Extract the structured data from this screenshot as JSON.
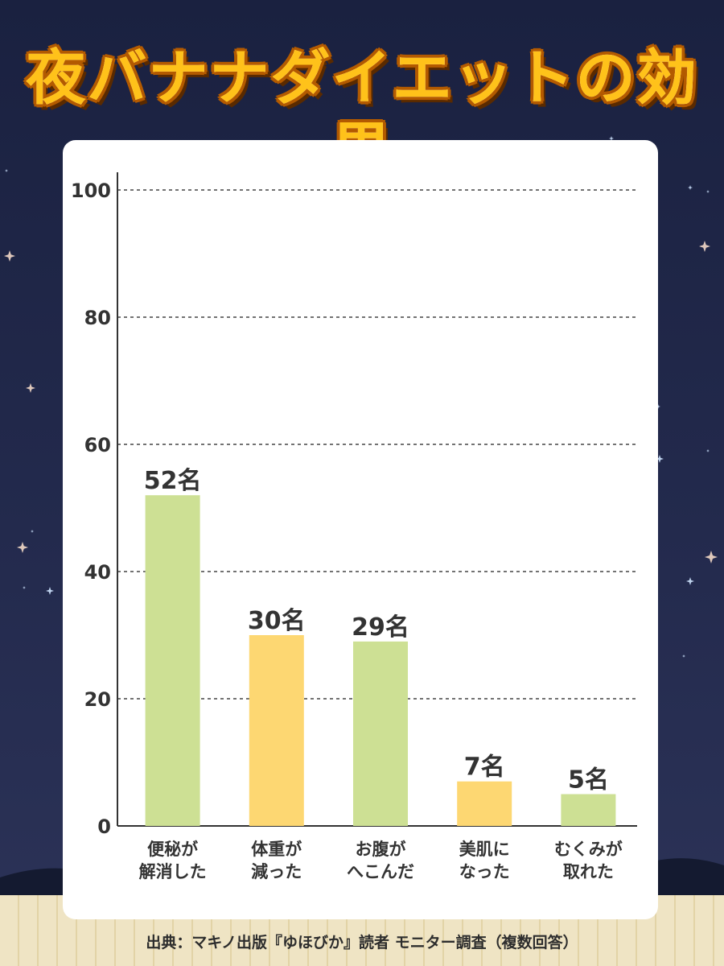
{
  "title": "夜バナナダイエットの効果",
  "source": "出典：マキノ出版『ゆほびか』読者 モニター調査（複数回答）",
  "chart_data": {
    "type": "bar",
    "ylim": [
      0,
      100
    ],
    "yticks": [
      "0",
      "20",
      "40",
      "60",
      "80",
      "100"
    ],
    "grid": true,
    "categories": [
      [
        "便秘が",
        "解消した"
      ],
      [
        "体重が",
        "減った"
      ],
      [
        "お腹が",
        "へこんだ"
      ],
      [
        "美肌に",
        "なった"
      ],
      [
        "むくみが",
        "取れた"
      ]
    ],
    "values": [
      52,
      30,
      29,
      7,
      5
    ],
    "value_labels": [
      "52名",
      "30名",
      "29名",
      "7名",
      "5名"
    ],
    "bar_colors": [
      "#cde094",
      "#fdd772",
      "#cde094",
      "#fdd772",
      "#cde094"
    ]
  },
  "colors": {
    "background": "#1f2646",
    "title_fill": "#ffc21a",
    "title_outline": "#b35a00",
    "card": "#ffffff",
    "axis": "#333333"
  }
}
